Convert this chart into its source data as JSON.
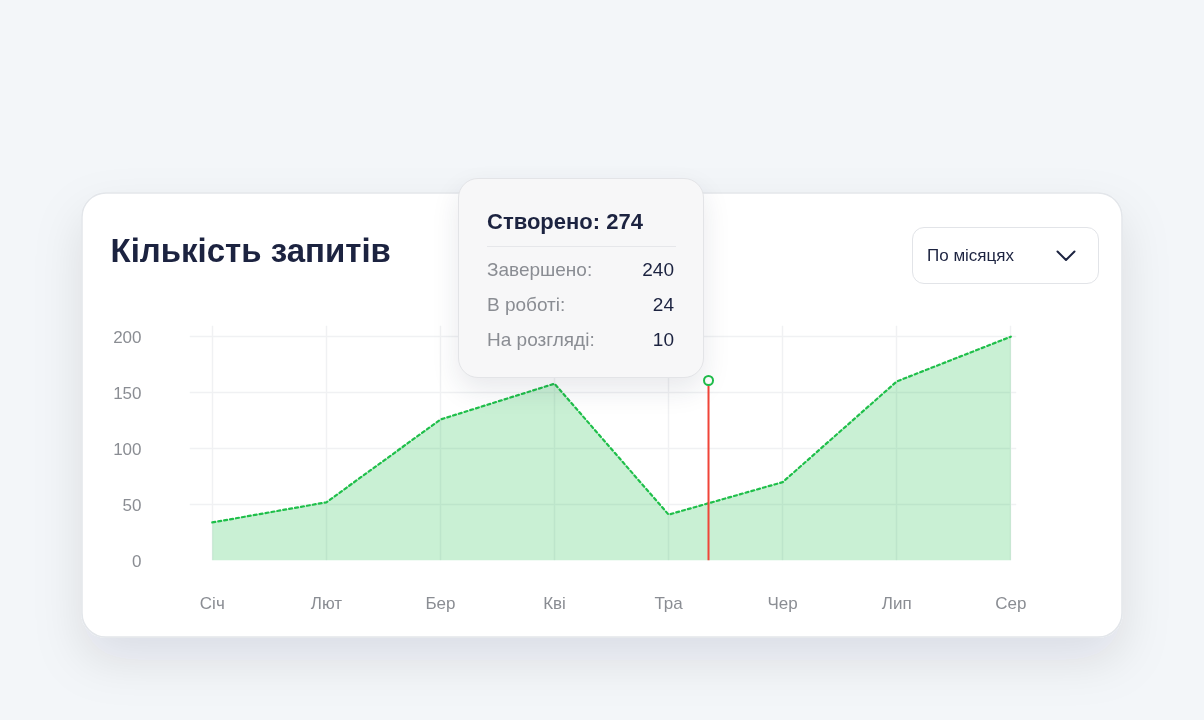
{
  "chart_data": {
    "type": "area",
    "title": "Кількість запитів",
    "categories": [
      "Січ",
      "Лют",
      "Бер",
      "Кві",
      "Тра",
      "Чер",
      "Лип",
      "Сер"
    ],
    "ylim": [
      0,
      210
    ],
    "yticks": [
      0,
      50,
      100,
      150,
      200
    ],
    "series": [
      {
        "color": "#1fbf4a",
        "values": [
          34,
          52,
          126,
          158,
          41,
          70,
          160,
          200
        ]
      }
    ],
    "line_style": "dotted",
    "grid": true,
    "annotations": [
      "Створено: 274",
      "Завершено: 240",
      "В роботі: 24",
      "На розгляді: 10",
      "По місяцях"
    ]
  }
}
